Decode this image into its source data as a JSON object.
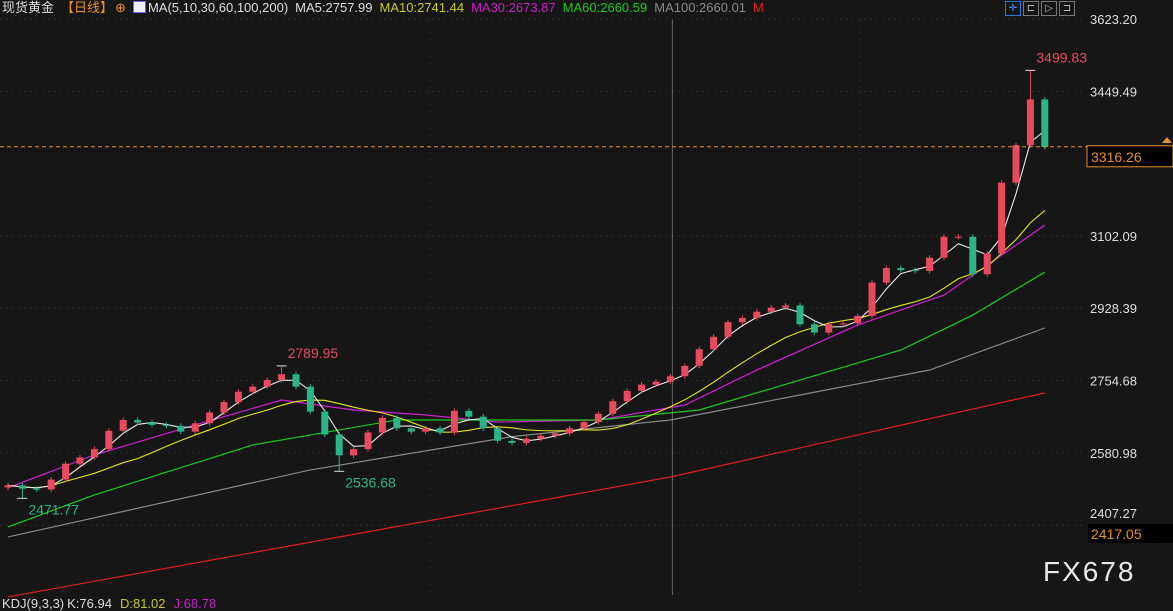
{
  "header": {
    "title": "现货黄金",
    "period": "【日线】",
    "indicator": "MA(5,10,30,60,100,200)",
    "ma5": "MA5:2757.99",
    "ma10": "MA10:2741.44",
    "ma30": "MA30:2673.87",
    "ma60": "MA60:2660.59",
    "ma100": "MA100:2660.01",
    "m": "M"
  },
  "toolbar": {
    "icons": [
      "crosshair-icon",
      "chart-left-icon",
      "chart-play-icon",
      "chart-right-icon"
    ]
  },
  "footer": {
    "kdj": "KDJ(9,3,3)",
    "k": "K:76.94",
    "d": "D:81.02",
    "j": "J:68.78"
  },
  "watermark": "FX678",
  "colors": {
    "up": "#e84a5f",
    "down": "#2bb38a",
    "ma5": "#e8e8e8",
    "ma10": "#e6e620",
    "ma30": "#d21fd2",
    "ma60": "#1ec81e",
    "ma100": "#888888",
    "ma200": "#e02020",
    "price_line": "#e8902a"
  },
  "chart_data": {
    "type": "candlestick",
    "yaxis_ticks": [
      "3623.20",
      "3449.49",
      "3102.09",
      "2928.39",
      "2754.68",
      "2580.98",
      "2407.27"
    ],
    "ylim": [
      2230,
      3623.2
    ],
    "current_price": "3316.26",
    "low_marker": "2417.05",
    "annotations": [
      {
        "text": "2789.95",
        "index": 19,
        "price": 2789.95,
        "type": "high"
      },
      {
        "text": "2536.68",
        "index": 23,
        "price": 2536.68,
        "type": "low"
      },
      {
        "text": "2471.77",
        "index": 1,
        "price": 2471.77,
        "type": "low"
      },
      {
        "text": "3499.83",
        "index": 71,
        "price": 3499.83,
        "type": "high"
      }
    ],
    "crosshair_index": 46,
    "closes": [
      2503,
      2495,
      2493,
      2517,
      2555,
      2570,
      2590,
      2634,
      2660,
      2654,
      2648,
      2646,
      2632,
      2652,
      2678,
      2703,
      2728,
      2740,
      2756,
      2770,
      2740,
      2680,
      2625,
      2575,
      2590,
      2630,
      2665,
      2640,
      2632,
      2640,
      2630,
      2682,
      2668,
      2640,
      2610,
      2605,
      2615,
      2622,
      2628,
      2640,
      2655,
      2675,
      2705,
      2730,
      2745,
      2752,
      2765,
      2790,
      2830,
      2860,
      2895,
      2905,
      2920,
      2930,
      2935,
      2890,
      2870,
      2890,
      2892,
      2910,
      2990,
      3025,
      3020,
      3018,
      3050,
      3100,
      3100,
      3010,
      3060,
      3230,
      3320,
      3430,
      3316
    ],
    "ma_lines": {
      "ma30": [
        [
          0,
          2497
        ],
        [
          6,
          2576
        ],
        [
          13,
          2648
        ],
        [
          19,
          2708
        ],
        [
          24,
          2684
        ],
        [
          29,
          2672
        ],
        [
          34,
          2655
        ],
        [
          41,
          2660
        ],
        [
          47,
          2696
        ],
        [
          52,
          2780
        ],
        [
          59,
          2888
        ],
        [
          65,
          2960
        ],
        [
          69,
          3056
        ],
        [
          72,
          3128
        ]
      ],
      "ma60": [
        [
          0,
          2403
        ],
        [
          6,
          2480
        ],
        [
          17,
          2600
        ],
        [
          27,
          2660
        ],
        [
          41,
          2660
        ],
        [
          48,
          2684
        ],
        [
          55,
          2756
        ],
        [
          62,
          2828
        ],
        [
          67,
          2912
        ],
        [
          72,
          3015
        ]
      ],
      "ma100": [
        [
          0,
          2379
        ],
        [
          21,
          2540
        ],
        [
          35,
          2620
        ],
        [
          46,
          2660
        ],
        [
          55,
          2720
        ],
        [
          64,
          2780
        ],
        [
          72,
          2881
        ]
      ],
      "ma200": [
        [
          0,
          2235
        ],
        [
          46,
          2523
        ],
        [
          72,
          2725
        ]
      ]
    }
  }
}
